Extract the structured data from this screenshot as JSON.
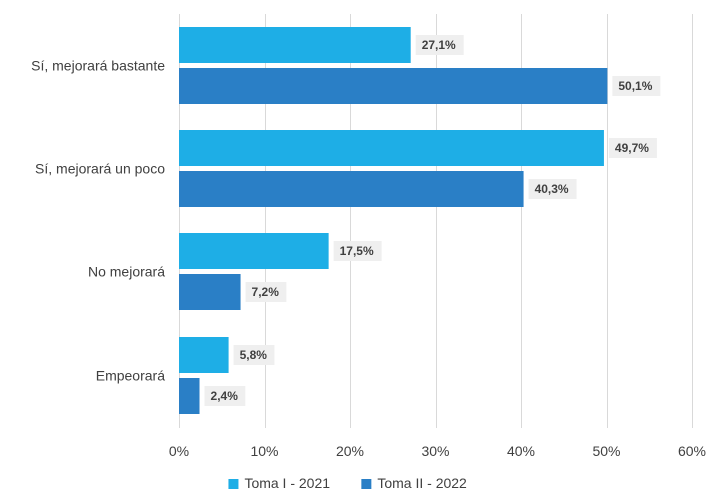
{
  "chart_data": {
    "type": "bar",
    "orientation": "horizontal",
    "categories": [
      "Sí, mejorará bastante",
      "Sí, mejorará un poco",
      "No mejorará",
      "Empeorará"
    ],
    "series": [
      {
        "name": "Toma I - 2021",
        "values": [
          27.1,
          49.7,
          17.5,
          5.8
        ],
        "labels": [
          "27,1%",
          "49,7%",
          "17,5%",
          "5,8%"
        ],
        "color": "#1eaee6"
      },
      {
        "name": "Toma II - 2022",
        "values": [
          50.1,
          40.3,
          7.2,
          2.4
        ],
        "labels": [
          "50,1%",
          "40,3%",
          "7,2%",
          "2,4%"
        ],
        "color": "#2a7fc6"
      }
    ],
    "xlim": [
      0,
      60
    ],
    "xticks": [
      0,
      10,
      20,
      30,
      40,
      50,
      60
    ],
    "xtick_labels": [
      "0%",
      "10%",
      "20%",
      "30%",
      "40%",
      "50%",
      "60%"
    ],
    "grid": true,
    "legend_position": "bottom",
    "data_label_background": "#efefef"
  }
}
